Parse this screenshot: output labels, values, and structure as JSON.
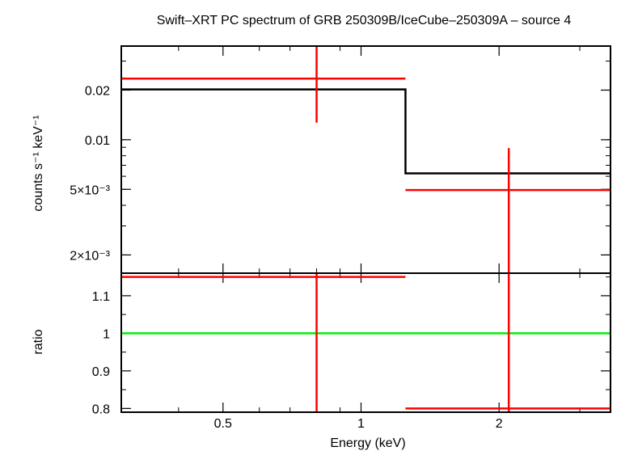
{
  "chart_data": {
    "type": "line",
    "title": "Swift–XRT PC spectrum of GRB 250309B/IceCube–250309A – source 4",
    "xlabel": "Energy (keV)",
    "xscale": "log",
    "xlim": [
      0.3,
      3.5
    ],
    "x_ticks": [
      {
        "value": 0.5,
        "label": "0.5"
      },
      {
        "value": 1,
        "label": "1"
      },
      {
        "value": 2,
        "label": "2"
      }
    ],
    "panels": [
      {
        "id": "spectrum",
        "ylabel": "counts s⁻¹ keV⁻¹",
        "yscale": "log",
        "ylim": [
          0.00155,
          0.037
        ],
        "y_ticks": [
          {
            "value": 0.02,
            "label": "0.02"
          },
          {
            "value": 0.01,
            "label": "0.01"
          },
          {
            "value": 0.005,
            "label": "5×10⁻³"
          },
          {
            "value": 0.002,
            "label": "2×10⁻³"
          }
        ],
        "data": {
          "color": "#ff0000",
          "points": [
            {
              "x": 0.8,
              "xlo": 0.3,
              "xhi": 1.25,
              "y": 0.0235,
              "ylo": 0.0127,
              "yhi": 0.037
            },
            {
              "x": 2.1,
              "xlo": 1.25,
              "xhi": 3.5,
              "y": 0.00495,
              "ylo": 0.00155,
              "yhi": 0.0089
            }
          ]
        },
        "model": {
          "color": "#000000",
          "steps": [
            {
              "xlo": 0.3,
              "xhi": 1.25,
              "y": 0.0202
            },
            {
              "xlo": 1.25,
              "xhi": 3.5,
              "y": 0.00625
            }
          ]
        }
      },
      {
        "id": "ratio",
        "ylabel": "ratio",
        "yscale": "linear",
        "ylim": [
          0.79,
          1.16
        ],
        "y_ticks": [
          {
            "value": 0.8,
            "label": "0.8"
          },
          {
            "value": 0.9,
            "label": "0.9"
          },
          {
            "value": 1,
            "label": "1"
          },
          {
            "value": 1.1,
            "label": "1.1"
          }
        ],
        "reference": {
          "y": 1,
          "color": "#00ee00"
        },
        "data": {
          "color": "#ff0000",
          "points": [
            {
              "x": 0.8,
              "xlo": 0.3,
              "xhi": 1.25,
              "y": 1.15,
              "ylo": 0.79,
              "yhi": 1.16
            },
            {
              "x": 2.1,
              "xlo": 1.25,
              "xhi": 3.5,
              "y": 0.8,
              "ylo": 0.79,
              "yhi": 1.16
            }
          ]
        }
      }
    ]
  }
}
